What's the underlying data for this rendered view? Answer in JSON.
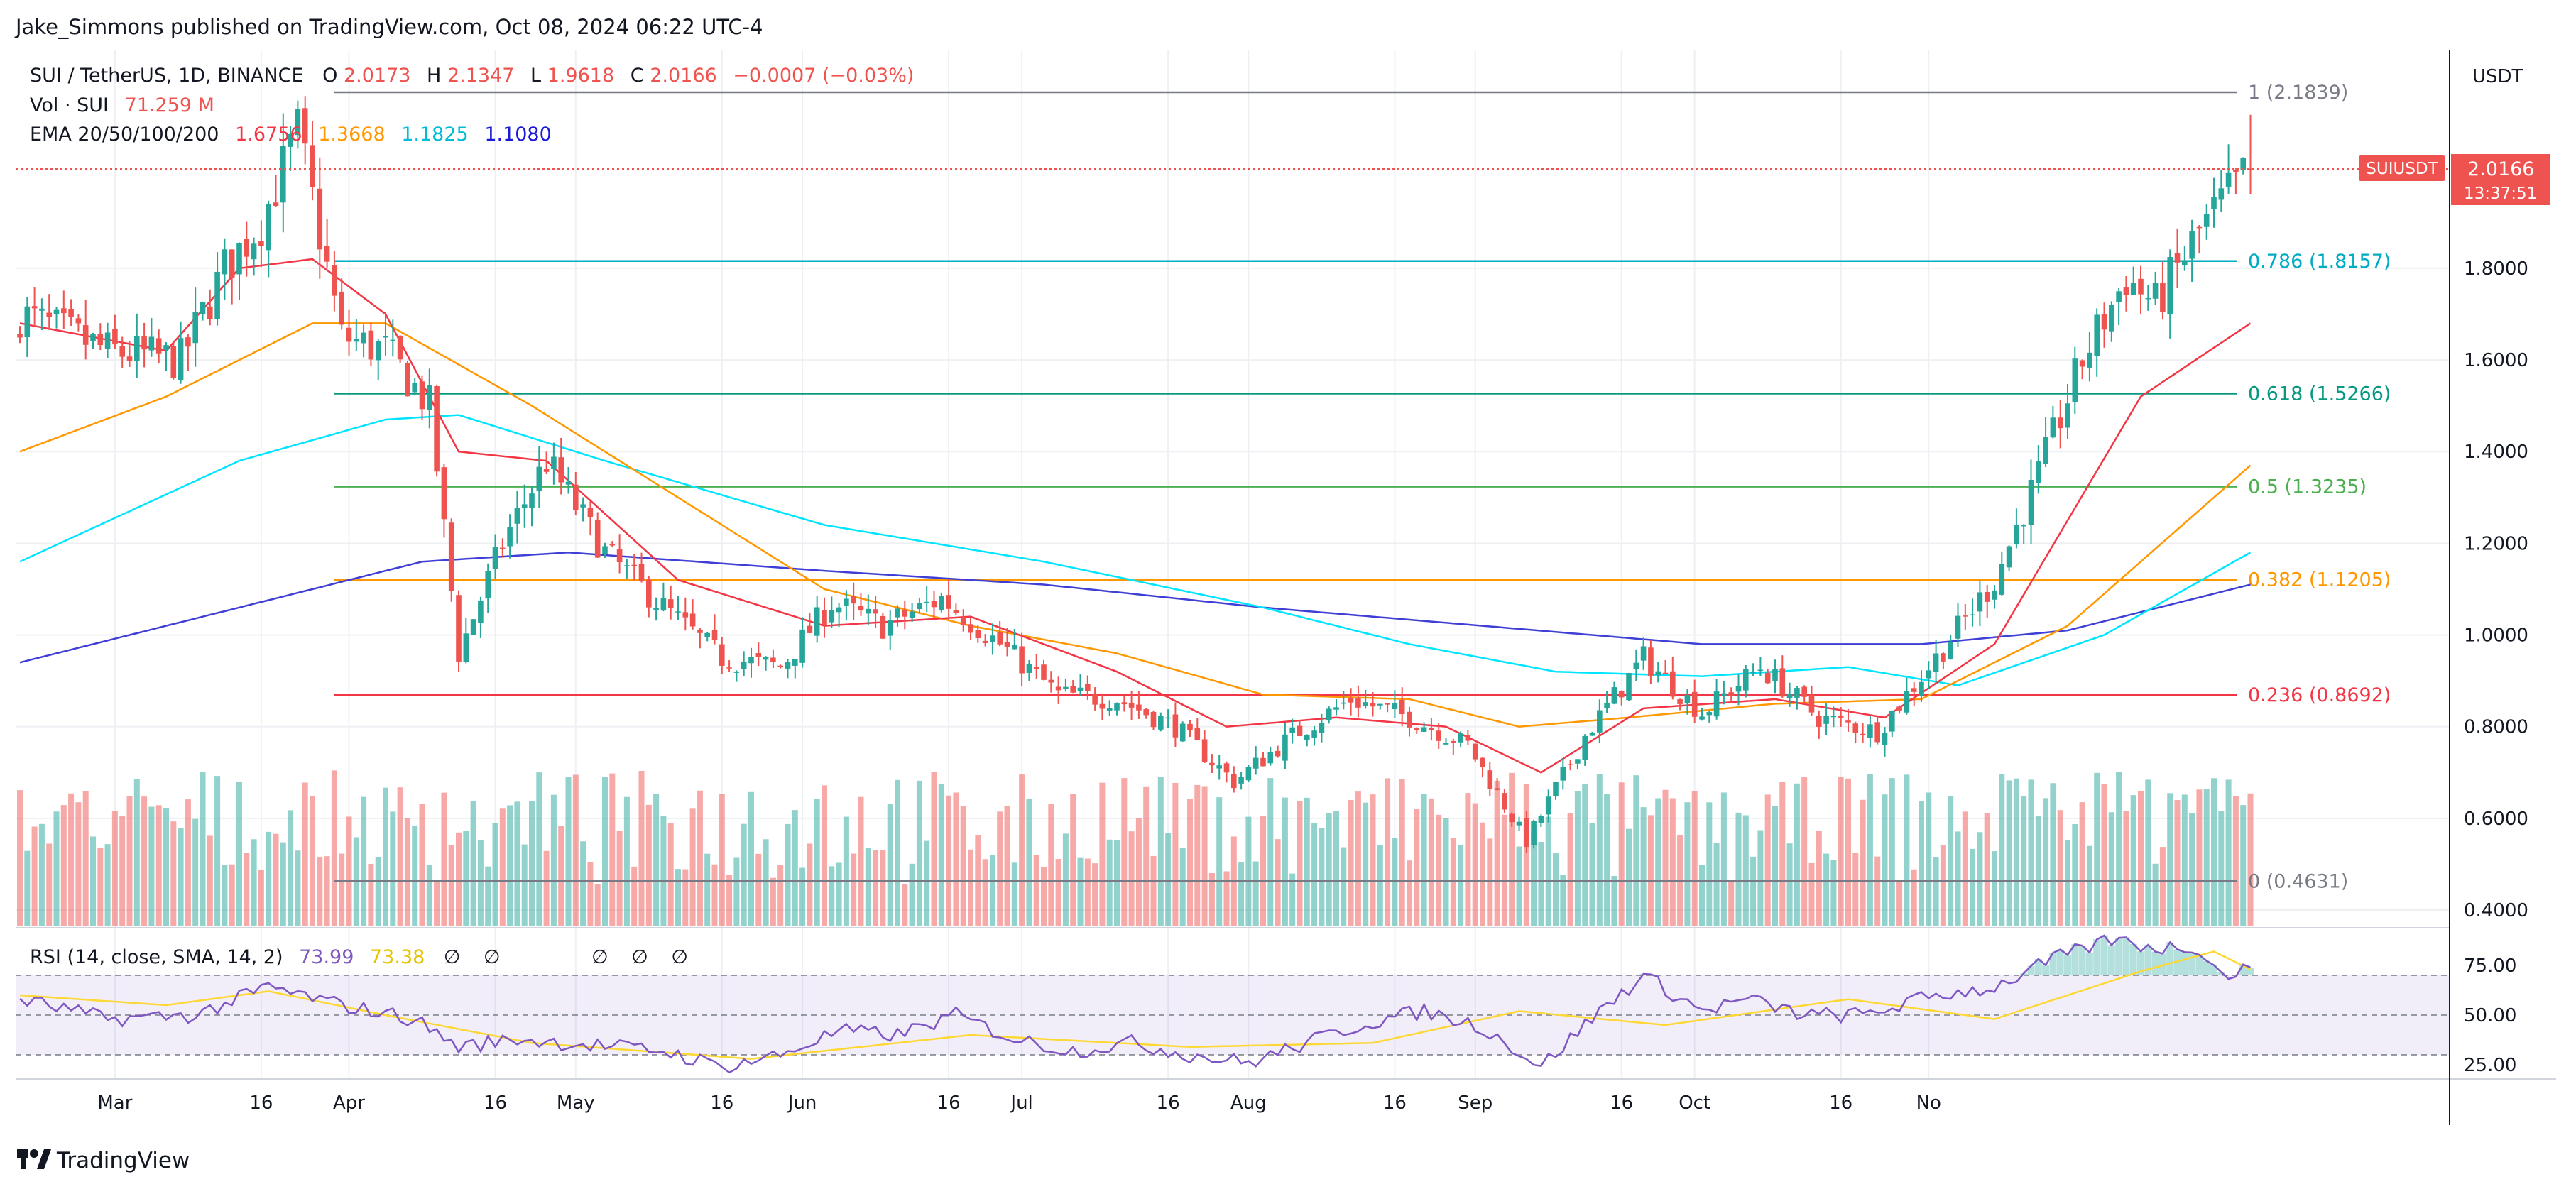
{
  "header": {
    "publisher": "Jake_Simmons published on TradingView.com, Oct 08, 2024 06:22 UTC-4"
  },
  "legend": {
    "symbol": "SUI / TetherUS, 1D, BINANCE",
    "o_label": "O",
    "o_value": "2.0173",
    "h_label": "H",
    "h_value": "2.1347",
    "l_label": "L",
    "l_value": "1.9618",
    "c_label": "C",
    "c_value": "2.0166",
    "change": "−0.0007 (−0.03%)",
    "vol_label": "Vol · SUI",
    "vol_value": "71.259 M",
    "ema_label": "EMA 20/50/100/200",
    "ema20": "1.6756",
    "ema50": "1.3668",
    "ema100": "1.1825",
    "ema200": "1.1080"
  },
  "price_axis": {
    "currency": "USDT",
    "current_symbol": "SUIUSDT",
    "current_price": "2.0166",
    "countdown": "13:37:51"
  },
  "rsi": {
    "label": "RSI (14, close, SMA, 14, 2)",
    "value": "73.99",
    "sma_value": "73.38",
    "na_marks": [
      "∅",
      "∅",
      "∅",
      "∅",
      "∅"
    ]
  },
  "footer": {
    "brand": "TradingView"
  },
  "colors": {
    "up": "#26a69a",
    "down": "#ef5350",
    "ema20": "#f23645",
    "ema50": "#ff9800",
    "ema100": "#00e5ff",
    "ema200": "#3f3fd6",
    "rsi": "#7e57c2",
    "rsi_sma": "#fdd835"
  },
  "chart_data": {
    "type": "candlestick",
    "title": "SUI / TetherUS, 1D, BINANCE",
    "ylabel": "USDT",
    "ylim": [
      0.36,
      2.28
    ],
    "y_ticks": [
      "0.4000",
      "0.6000",
      "0.8000",
      "1.0000",
      "1.2000",
      "1.4000",
      "1.6000",
      "1.8000"
    ],
    "x_ticks": [
      "Mar",
      "16",
      "Apr",
      "16",
      "May",
      "16",
      "Jun",
      "16",
      "Jul",
      "16",
      "Aug",
      "16",
      "Sep",
      "16",
      "Oct",
      "16",
      "No"
    ],
    "fib_levels": [
      {
        "label": "1 (2.1839)",
        "value": 2.1839,
        "color": "#787b86"
      },
      {
        "label": "0.786 (1.8157)",
        "value": 1.8157,
        "color": "#00acc1"
      },
      {
        "label": "0.618 (1.5266)",
        "value": 1.5266,
        "color": "#089981"
      },
      {
        "label": "0.5 (1.3235)",
        "value": 1.3235,
        "color": "#4caf50"
      },
      {
        "label": "0.382 (1.1205)",
        "value": 1.1205,
        "color": "#ff9800"
      },
      {
        "label": "0.236 (0.8692)",
        "value": 0.8692,
        "color": "#f23645"
      },
      {
        "label": "0 (0.4631)",
        "value": 0.4631,
        "color": "#787b86"
      }
    ],
    "close_anchors": [
      [
        0,
        1.7
      ],
      [
        12,
        1.62
      ],
      [
        22,
        1.6
      ],
      [
        28,
        1.8
      ],
      [
        33,
        1.9
      ],
      [
        38,
        2.1
      ],
      [
        44,
        1.65
      ],
      [
        50,
        1.62
      ],
      [
        56,
        1.5
      ],
      [
        60,
        0.96
      ],
      [
        66,
        1.2
      ],
      [
        72,
        1.38
      ],
      [
        80,
        1.18
      ],
      [
        88,
        1.06
      ],
      [
        96,
        0.95
      ],
      [
        104,
        0.93
      ],
      [
        111,
        1.07
      ],
      [
        118,
        1.02
      ],
      [
        126,
        1.08
      ],
      [
        134,
        0.98
      ],
      [
        142,
        0.87
      ],
      [
        150,
        0.86
      ],
      [
        158,
        0.8
      ],
      [
        166,
        0.68
      ],
      [
        174,
        0.78
      ],
      [
        182,
        0.86
      ],
      [
        190,
        0.82
      ],
      [
        198,
        0.76
      ],
      [
        206,
        0.55
      ],
      [
        214,
        0.78
      ],
      [
        222,
        0.95
      ],
      [
        230,
        0.83
      ],
      [
        238,
        0.93
      ],
      [
        246,
        0.82
      ],
      [
        254,
        0.79
      ],
      [
        262,
        0.95
      ],
      [
        270,
        1.12
      ],
      [
        276,
        1.35
      ],
      [
        282,
        1.6
      ],
      [
        288,
        1.78
      ],
      [
        292,
        1.72
      ],
      [
        298,
        1.88
      ],
      [
        305,
        2.02
      ]
    ],
    "ema20_anchors": [
      [
        0,
        1.68
      ],
      [
        20,
        1.62
      ],
      [
        30,
        1.8
      ],
      [
        40,
        1.82
      ],
      [
        50,
        1.7
      ],
      [
        60,
        1.4
      ],
      [
        72,
        1.38
      ],
      [
        90,
        1.12
      ],
      [
        110,
        1.02
      ],
      [
        130,
        1.04
      ],
      [
        150,
        0.92
      ],
      [
        165,
        0.8
      ],
      [
        180,
        0.82
      ],
      [
        195,
        0.8
      ],
      [
        208,
        0.7
      ],
      [
        222,
        0.84
      ],
      [
        240,
        0.86
      ],
      [
        255,
        0.82
      ],
      [
        270,
        0.98
      ],
      [
        290,
        1.52
      ],
      [
        305,
        1.68
      ]
    ],
    "ema50_anchors": [
      [
        0,
        1.4
      ],
      [
        20,
        1.52
      ],
      [
        40,
        1.68
      ],
      [
        50,
        1.68
      ],
      [
        70,
        1.5
      ],
      [
        90,
        1.3
      ],
      [
        110,
        1.1
      ],
      [
        130,
        1.02
      ],
      [
        150,
        0.96
      ],
      [
        170,
        0.87
      ],
      [
        190,
        0.86
      ],
      [
        205,
        0.8
      ],
      [
        220,
        0.82
      ],
      [
        240,
        0.85
      ],
      [
        260,
        0.86
      ],
      [
        280,
        1.02
      ],
      [
        305,
        1.37
      ]
    ],
    "ema100_anchors": [
      [
        0,
        1.16
      ],
      [
        30,
        1.38
      ],
      [
        50,
        1.47
      ],
      [
        60,
        1.48
      ],
      [
        80,
        1.38
      ],
      [
        110,
        1.24
      ],
      [
        140,
        1.16
      ],
      [
        170,
        1.06
      ],
      [
        190,
        0.98
      ],
      [
        210,
        0.92
      ],
      [
        230,
        0.91
      ],
      [
        250,
        0.93
      ],
      [
        265,
        0.89
      ],
      [
        285,
        1.0
      ],
      [
        305,
        1.18
      ]
    ],
    "ema200_anchors": [
      [
        0,
        0.94
      ],
      [
        30,
        1.06
      ],
      [
        55,
        1.16
      ],
      [
        75,
        1.18
      ],
      [
        110,
        1.14
      ],
      [
        140,
        1.11
      ],
      [
        170,
        1.06
      ],
      [
        200,
        1.02
      ],
      [
        230,
        0.98
      ],
      [
        260,
        0.98
      ],
      [
        280,
        1.01
      ],
      [
        305,
        1.11
      ]
    ],
    "rsi_anchors": [
      [
        0,
        58
      ],
      [
        12,
        48
      ],
      [
        24,
        50
      ],
      [
        34,
        64
      ],
      [
        44,
        55
      ],
      [
        54,
        48
      ],
      [
        60,
        34
      ],
      [
        68,
        38
      ],
      [
        78,
        35
      ],
      [
        88,
        32
      ],
      [
        96,
        24
      ],
      [
        104,
        30
      ],
      [
        112,
        42
      ],
      [
        120,
        40
      ],
      [
        128,
        50
      ],
      [
        136,
        38
      ],
      [
        144,
        32
      ],
      [
        152,
        36
      ],
      [
        160,
        30
      ],
      [
        168,
        26
      ],
      [
        176,
        36
      ],
      [
        184,
        46
      ],
      [
        192,
        52
      ],
      [
        200,
        44
      ],
      [
        208,
        24
      ],
      [
        216,
        52
      ],
      [
        222,
        70
      ],
      [
        230,
        52
      ],
      [
        236,
        58
      ],
      [
        244,
        50
      ],
      [
        252,
        50
      ],
      [
        262,
        60
      ],
      [
        270,
        64
      ],
      [
        278,
        78
      ],
      [
        286,
        88
      ],
      [
        292,
        84
      ],
      [
        298,
        84
      ],
      [
        301,
        70
      ],
      [
        305,
        74
      ]
    ],
    "rsi_sma_anchors": [
      [
        0,
        60
      ],
      [
        20,
        55
      ],
      [
        34,
        62
      ],
      [
        50,
        50
      ],
      [
        70,
        36
      ],
      [
        100,
        28
      ],
      [
        130,
        40
      ],
      [
        160,
        34
      ],
      [
        185,
        36
      ],
      [
        205,
        52
      ],
      [
        225,
        45
      ],
      [
        250,
        58
      ],
      [
        270,
        48
      ],
      [
        290,
        72
      ],
      [
        300,
        82
      ],
      [
        305,
        73
      ]
    ],
    "rsi_ylim": [
      15,
      90
    ],
    "rsi_ticks": [
      "75.00",
      "50.00",
      "25.00"
    ],
    "volume_unit": "SUI"
  }
}
